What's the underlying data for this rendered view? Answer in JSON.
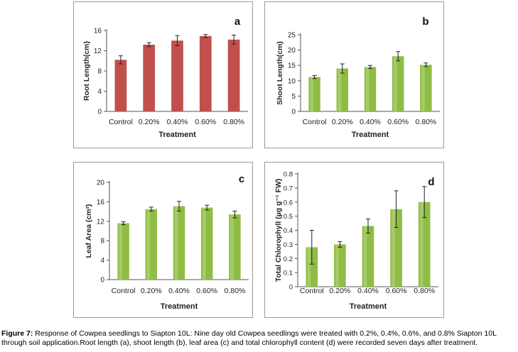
{
  "figure": {
    "caption_label": "Figure 7:",
    "caption_text": " Response of Cowpea seedlings to Siapton 10L: Nine day old Cowpea seedlings were treated with 0.2%, 0.4%, 0.6%, and 0.8% Siapton 10L through soil application.Root length (a), shoot length (b), leaf area (c) and total chlorophyll content (d) were recorded seven days after treatment."
  },
  "colors": {
    "red_bar": "#c0504d",
    "green_bar": "#8fbc45",
    "error_bar": "#222222"
  },
  "chart_data": [
    {
      "panel_letter": "a",
      "type": "bar",
      "categories": [
        "Control",
        "0.20%",
        "0.40%",
        "0.60%",
        "0.80%"
      ],
      "values": [
        10.2,
        13.2,
        14.0,
        14.9,
        14.2
      ],
      "errors": [
        0.8,
        0.4,
        1.0,
        0.3,
        0.9
      ],
      "ylabel": "Root Length(cm)",
      "xlabel": "Treatment",
      "ylim": [
        0,
        16
      ],
      "yticks": [
        "0",
        "4",
        "8",
        "12",
        "16"
      ],
      "color": "#c0504d",
      "grid": false
    },
    {
      "panel_letter": "b",
      "type": "bar",
      "categories": [
        "Control",
        "0.20%",
        "0.40%",
        "0.60%",
        "0.80%"
      ],
      "values": [
        11.2,
        14.0,
        14.5,
        18.0,
        15.2
      ],
      "errors": [
        0.5,
        1.5,
        0.5,
        1.5,
        0.6
      ],
      "ylabel": "Shoot Length(cm)",
      "xlabel": "Treatment",
      "ylim": [
        0,
        25
      ],
      "yticks": [
        "0",
        "5",
        "10",
        "15",
        "20",
        "25"
      ],
      "color": "#8fbc45",
      "grid": false
    },
    {
      "panel_letter": "c",
      "type": "bar",
      "categories": [
        "Control",
        "0.20%",
        "0.40%",
        "0.60%",
        "0.80%"
      ],
      "values": [
        11.6,
        14.5,
        15.1,
        14.8,
        13.4
      ],
      "errors": [
        0.3,
        0.4,
        1.0,
        0.5,
        0.7
      ],
      "ylabel": "Leaf Area (cm²)",
      "xlabel": "Treatment",
      "ylim": [
        0,
        20
      ],
      "yticks": [
        "0",
        "4",
        "8",
        "12",
        "16",
        "20"
      ],
      "color": "#8fbc45",
      "grid": false
    },
    {
      "panel_letter": "d",
      "type": "bar",
      "categories": [
        "Control",
        "0.20%",
        "0.40%",
        "0.60%",
        "0.80%"
      ],
      "values": [
        0.28,
        0.3,
        0.43,
        0.55,
        0.6
      ],
      "errors": [
        0.12,
        0.02,
        0.05,
        0.13,
        0.11
      ],
      "ylabel": "Total Chlorophyll (µg g⁻¹ FW)",
      "xlabel": "Treatment",
      "ylim": [
        0,
        0.8
      ],
      "yticks": [
        "0",
        "0.1",
        "0.2",
        "0.3",
        "0.4",
        "0.5",
        "0.6",
        "0.7",
        "0.8"
      ],
      "color": "#8fbc45",
      "grid": false
    }
  ]
}
